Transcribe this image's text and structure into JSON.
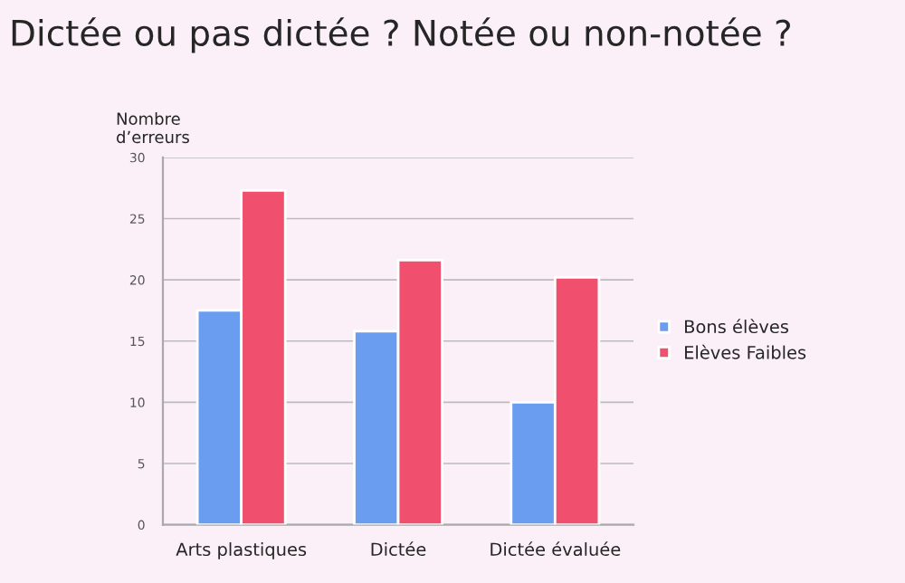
{
  "chart_data": {
    "type": "bar",
    "title": "Dictée ou pas dictée ? Notée ou non-notée ?",
    "ylabel": "Nombre\nd’erreurs",
    "categories": [
      "Arts plastiques",
      "Dictée",
      "Dictée évaluée"
    ],
    "series": [
      {
        "name": "Bons élèves",
        "color": "#6a9cf0",
        "values": [
          17.5,
          15.8,
          10.0
        ]
      },
      {
        "name": "Elèves Faibles",
        "color": "#f0506e",
        "values": [
          27.3,
          21.6,
          20.2
        ]
      }
    ],
    "ylim": [
      0,
      30
    ],
    "yticks": [
      0,
      5,
      10,
      15,
      20,
      25,
      30
    ],
    "grid": "y",
    "legend": "right"
  }
}
